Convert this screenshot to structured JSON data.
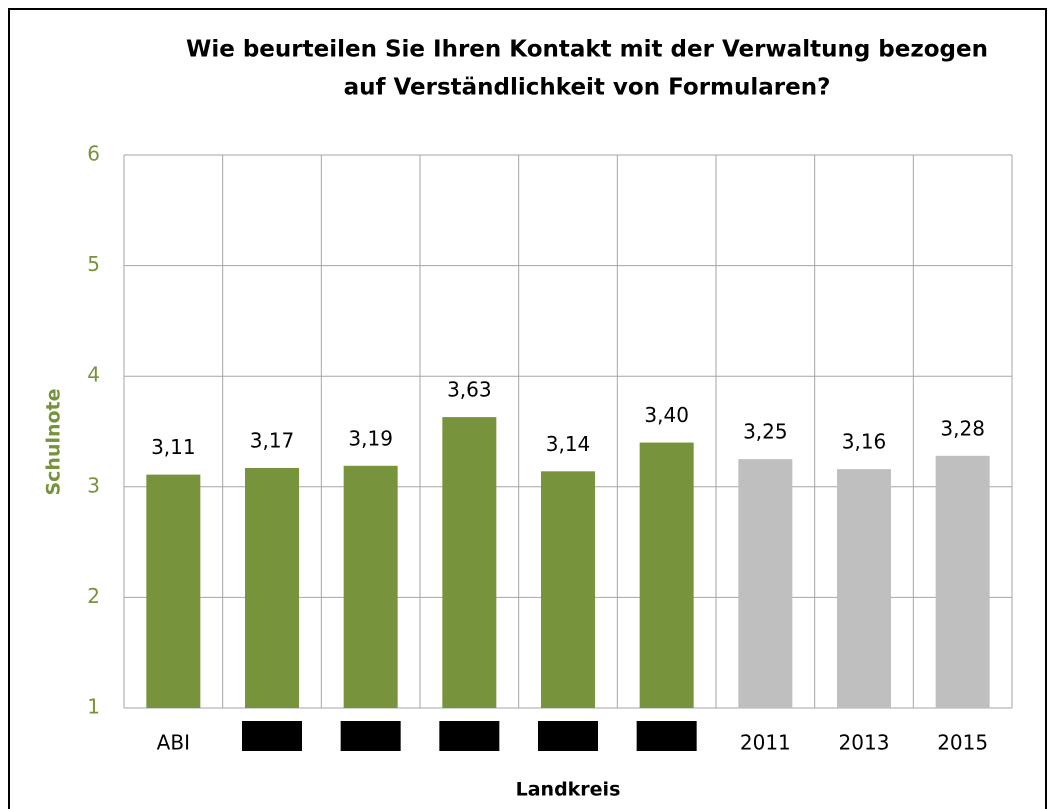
{
  "chart_data": {
    "type": "bar",
    "title": [
      "Wie beurteilen Sie Ihren Kontakt mit der Verwaltung bezogen",
      "auf Verständlichkeit von Formularen?"
    ],
    "x_label": "Landkreis",
    "y_label": "Schulnote",
    "categories": [
      "ABI",
      null,
      null,
      null,
      null,
      null,
      "2011",
      "2013",
      "2015"
    ],
    "values": [
      3.11,
      3.17,
      3.19,
      3.63,
      3.14,
      3.4,
      3.25,
      3.16,
      3.28
    ],
    "value_labels": [
      "3,11",
      "3,17",
      "3,19",
      "3,63",
      "3,14",
      "3,40",
      "3,25",
      "3,16",
      "3,28"
    ],
    "colors": [
      "#77933c",
      "#77933c",
      "#77933c",
      "#77933c",
      "#77933c",
      "#77933c",
      "#bfbfbf",
      "#bfbfbf",
      "#bfbfbf"
    ],
    "ylim": [
      1,
      6
    ],
    "yticks": [
      1,
      2,
      3,
      4,
      5,
      6
    ],
    "grid": true
  }
}
